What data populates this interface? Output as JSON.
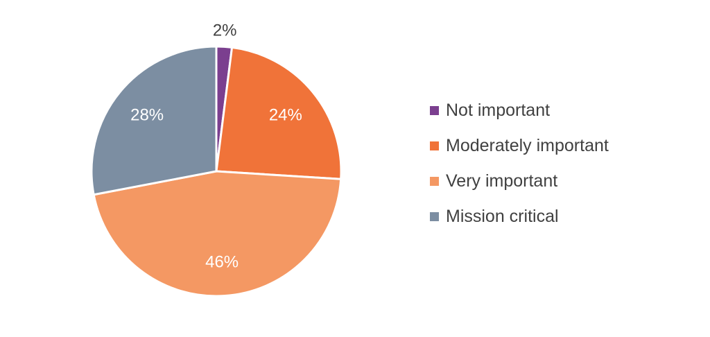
{
  "chart_data": {
    "type": "pie",
    "categories": [
      "Not important",
      "Moderately important",
      "Very important",
      "Mission critical"
    ],
    "values": [
      2,
      24,
      46,
      28
    ],
    "labels": [
      "2%",
      "24%",
      "46%",
      "28%"
    ],
    "colors": [
      "#7b3f8f",
      "#f07339",
      "#f49863",
      "#7c8ea2"
    ],
    "start_angle_deg": 0,
    "direction": "clockwise",
    "label_colors": [
      "#404040",
      "#ffffff",
      "#ffffff",
      "#ffffff"
    ],
    "legend_position": "right"
  }
}
